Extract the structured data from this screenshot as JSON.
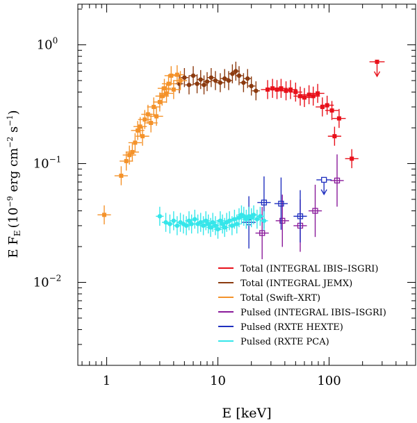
{
  "chart_data": {
    "type": "scatter",
    "title": "",
    "xlabel": "E [keV]",
    "ylabel": "E F_E (10^-9 erg cm^-2 s^-1)",
    "ylabel_parts": {
      "main": "E F",
      "sub": "E",
      "unit_open": "(10",
      "exp": "−9",
      "unit_rest": " erg cm",
      "exp2": "−2",
      "unit_s": " s",
      "exp3": "−1",
      "unit_close": ")"
    },
    "x_scale": "log",
    "y_scale": "log",
    "xlim": [
      0.55,
      600
    ],
    "ylim": [
      0.002,
      2.2
    ],
    "x_tick_labels": [
      {
        "value": 1,
        "label": "1"
      },
      {
        "value": 10,
        "label": "10"
      },
      {
        "value": 100,
        "label": "100"
      }
    ],
    "y_tick_labels": [
      {
        "value": 1,
        "base": "10",
        "exp": "0"
      },
      {
        "value": 0.1,
        "base": "10",
        "exp": "−1"
      },
      {
        "value": 0.01,
        "base": "10",
        "exp": "−2"
      }
    ],
    "legend_position": "bottom-right",
    "series": [
      {
        "name": "Total (INTEGRAL IBIS–ISGRI)",
        "color": "#e8101a",
        "marker": "filled-square",
        "points": [
          {
            "x": 28,
            "y": 0.42
          },
          {
            "x": 31,
            "y": 0.43
          },
          {
            "x": 34,
            "y": 0.42
          },
          {
            "x": 37,
            "y": 0.43
          },
          {
            "x": 41,
            "y": 0.41
          },
          {
            "x": 45,
            "y": 0.42
          },
          {
            "x": 50,
            "y": 0.4
          },
          {
            "x": 55,
            "y": 0.37
          },
          {
            "x": 60,
            "y": 0.36
          },
          {
            "x": 66,
            "y": 0.38
          },
          {
            "x": 72,
            "y": 0.37
          },
          {
            "x": 79,
            "y": 0.39
          },
          {
            "x": 87,
            "y": 0.3
          },
          {
            "x": 96,
            "y": 0.31
          },
          {
            "x": 106,
            "y": 0.28
          },
          {
            "x": 112,
            "y": 0.17
          },
          {
            "x": 123,
            "y": 0.24
          },
          {
            "x": 160,
            "y": 0.11
          }
        ],
        "upper_limits": [
          {
            "x": 270,
            "y": 0.72
          }
        ]
      },
      {
        "name": "Total (INTEGRAL JEMX)",
        "color": "#8b3a0f",
        "marker": "filled-circle",
        "points": [
          {
            "x": 4.5,
            "y": 0.47
          },
          {
            "x": 5.0,
            "y": 0.53
          },
          {
            "x": 5.5,
            "y": 0.46
          },
          {
            "x": 6.0,
            "y": 0.55
          },
          {
            "x": 6.5,
            "y": 0.47
          },
          {
            "x": 7.0,
            "y": 0.51
          },
          {
            "x": 7.5,
            "y": 0.46
          },
          {
            "x": 8.0,
            "y": 0.49
          },
          {
            "x": 8.7,
            "y": 0.53
          },
          {
            "x": 9.5,
            "y": 0.5
          },
          {
            "x": 10.5,
            "y": 0.48
          },
          {
            "x": 11.5,
            "y": 0.52
          },
          {
            "x": 12.5,
            "y": 0.5
          },
          {
            "x": 13.5,
            "y": 0.57
          },
          {
            "x": 14.5,
            "y": 0.6
          },
          {
            "x": 15.5,
            "y": 0.55
          },
          {
            "x": 17.0,
            "y": 0.48
          },
          {
            "x": 18.5,
            "y": 0.52
          },
          {
            "x": 20.0,
            "y": 0.45
          },
          {
            "x": 22.0,
            "y": 0.41
          }
        ]
      },
      {
        "name": "Total (Swift–XRT)",
        "color": "#f4922a",
        "marker": "filled-square",
        "points": [
          {
            "x": 0.95,
            "y": 0.037
          },
          {
            "x": 1.35,
            "y": 0.079
          },
          {
            "x": 1.5,
            "y": 0.105
          },
          {
            "x": 1.6,
            "y": 0.118
          },
          {
            "x": 1.7,
            "y": 0.125
          },
          {
            "x": 1.8,
            "y": 0.15
          },
          {
            "x": 1.9,
            "y": 0.19
          },
          {
            "x": 2.0,
            "y": 0.205
          },
          {
            "x": 2.1,
            "y": 0.17
          },
          {
            "x": 2.2,
            "y": 0.235
          },
          {
            "x": 2.35,
            "y": 0.26
          },
          {
            "x": 2.5,
            "y": 0.22
          },
          {
            "x": 2.65,
            "y": 0.3
          },
          {
            "x": 2.8,
            "y": 0.25
          },
          {
            "x": 3.0,
            "y": 0.33
          },
          {
            "x": 3.15,
            "y": 0.37
          },
          {
            "x": 3.3,
            "y": 0.43
          },
          {
            "x": 3.45,
            "y": 0.39
          },
          {
            "x": 3.6,
            "y": 0.47
          },
          {
            "x": 3.8,
            "y": 0.55
          },
          {
            "x": 4.0,
            "y": 0.42
          },
          {
            "x": 4.3,
            "y": 0.56
          },
          {
            "x": 4.6,
            "y": 0.5
          }
        ]
      },
      {
        "name": "Pulsed (INTEGRAL IBIS–ISGRI)",
        "color": "#8a1a9a",
        "marker": "open-square",
        "points": [
          {
            "x": 25,
            "y": 0.026
          },
          {
            "x": 38,
            "y": 0.033
          },
          {
            "x": 55,
            "y": 0.03
          },
          {
            "x": 75,
            "y": 0.04
          },
          {
            "x": 118,
            "y": 0.072
          }
        ]
      },
      {
        "name": "Pulsed (RXTE HEXTE)",
        "color": "#1f2fbf",
        "marker": "open-square",
        "points": [
          {
            "x": 19,
            "y": 0.032
          },
          {
            "x": 26,
            "y": 0.047
          },
          {
            "x": 37,
            "y": 0.046
          },
          {
            "x": 55,
            "y": 0.036
          }
        ],
        "upper_limits": [
          {
            "x": 90,
            "y": 0.073
          }
        ]
      },
      {
        "name": "Pulsed (RXTE PCA)",
        "color": "#35e6ea",
        "marker": "filled-circle",
        "points": [
          {
            "x": 3.0,
            "y": 0.036
          },
          {
            "x": 3.4,
            "y": 0.032
          },
          {
            "x": 3.7,
            "y": 0.031
          },
          {
            "x": 4.0,
            "y": 0.033
          },
          {
            "x": 4.3,
            "y": 0.03
          },
          {
            "x": 4.6,
            "y": 0.032
          },
          {
            "x": 4.9,
            "y": 0.031
          },
          {
            "x": 5.2,
            "y": 0.03
          },
          {
            "x": 5.5,
            "y": 0.033
          },
          {
            "x": 5.8,
            "y": 0.031
          },
          {
            "x": 6.2,
            "y": 0.034
          },
          {
            "x": 6.6,
            "y": 0.031
          },
          {
            "x": 7.0,
            "y": 0.032
          },
          {
            "x": 7.4,
            "y": 0.03
          },
          {
            "x": 7.8,
            "y": 0.033
          },
          {
            "x": 8.2,
            "y": 0.031
          },
          {
            "x": 8.6,
            "y": 0.029
          },
          {
            "x": 9.0,
            "y": 0.032
          },
          {
            "x": 9.5,
            "y": 0.03
          },
          {
            "x": 10.0,
            "y": 0.028
          },
          {
            "x": 10.5,
            "y": 0.033
          },
          {
            "x": 11.0,
            "y": 0.031
          },
          {
            "x": 11.5,
            "y": 0.029
          },
          {
            "x": 12.0,
            "y": 0.032
          },
          {
            "x": 12.7,
            "y": 0.033
          },
          {
            "x": 13.4,
            "y": 0.03
          },
          {
            "x": 14.1,
            "y": 0.034
          },
          {
            "x": 14.8,
            "y": 0.031
          },
          {
            "x": 15.5,
            "y": 0.035
          },
          {
            "x": 16.3,
            "y": 0.037
          },
          {
            "x": 17.1,
            "y": 0.036
          },
          {
            "x": 18.0,
            "y": 0.034
          },
          {
            "x": 19.0,
            "y": 0.036
          },
          {
            "x": 20.0,
            "y": 0.035
          },
          {
            "x": 21.0,
            "y": 0.037
          },
          {
            "x": 22.5,
            "y": 0.034
          },
          {
            "x": 24.0,
            "y": 0.036
          },
          {
            "x": 26.0,
            "y": 0.033
          }
        ]
      }
    ]
  }
}
